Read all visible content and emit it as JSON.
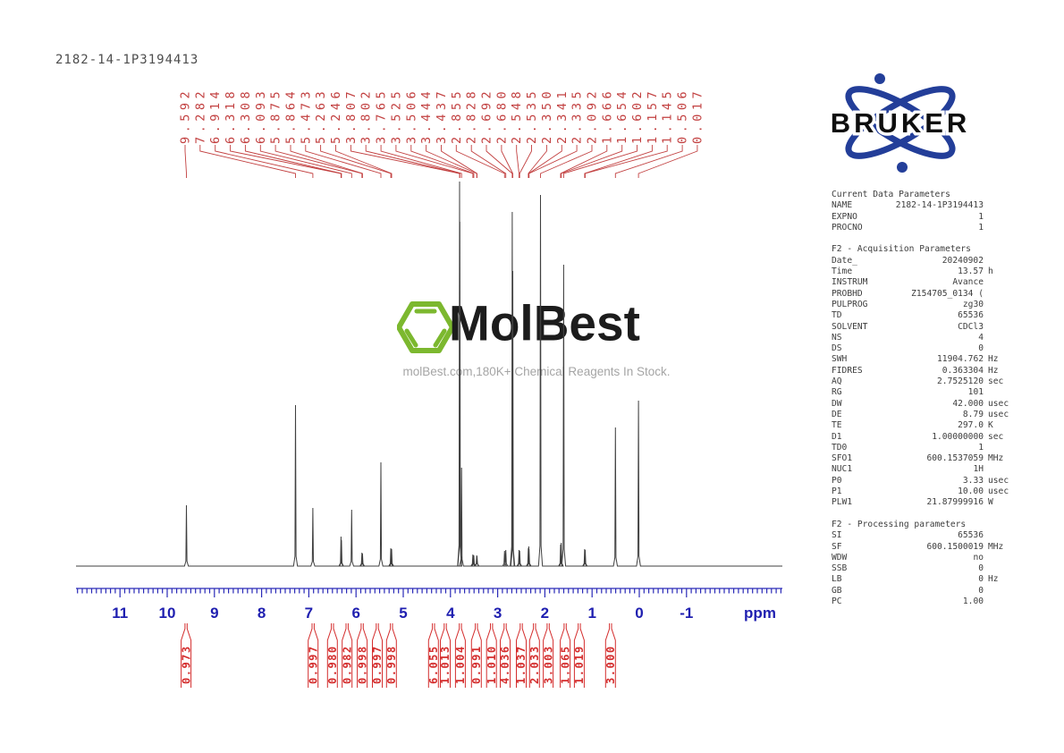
{
  "page": {
    "title": "2182-14-1P3194413"
  },
  "logo": {
    "text": "BRUKER"
  },
  "watermark": {
    "brand": "MolBest",
    "tagline": "molBest.com,180K+ Chemical Reagents In Stock."
  },
  "chart_data": {
    "type": "line",
    "kind": "1H NMR spectrum",
    "title": "2182-14-1P3194413",
    "xlabel": "ppm",
    "x_axis_reversed": true,
    "axis_ticks": [
      11,
      10,
      9,
      8,
      7,
      6,
      5,
      4,
      3,
      2,
      1,
      0,
      -1
    ],
    "axis_range_ppm": [
      11.9,
      -3.0
    ],
    "peak_labels_ppm": [
      9.592,
      7.282,
      6.914,
      6.318,
      6.308,
      6.093,
      5.875,
      5.864,
      5.473,
      5.263,
      5.246,
      3.807,
      3.802,
      3.765,
      3.525,
      3.506,
      3.444,
      3.437,
      2.855,
      2.828,
      2.692,
      2.68,
      2.548,
      2.535,
      2.35,
      2.341,
      2.335,
      2.092,
      1.666,
      1.654,
      1.602,
      1.157,
      1.145,
      0.506,
      0.017
    ],
    "peaks": [
      {
        "ppm": 9.592,
        "intensity": 68
      },
      {
        "ppm": 7.282,
        "intensity": 180
      },
      {
        "ppm": 6.914,
        "intensity": 65
      },
      {
        "ppm": 6.318,
        "intensity": 33
      },
      {
        "ppm": 6.308,
        "intensity": 29
      },
      {
        "ppm": 6.093,
        "intensity": 63
      },
      {
        "ppm": 5.875,
        "intensity": 15
      },
      {
        "ppm": 5.864,
        "intensity": 14
      },
      {
        "ppm": 5.473,
        "intensity": 116
      },
      {
        "ppm": 5.263,
        "intensity": 20
      },
      {
        "ppm": 5.246,
        "intensity": 19
      },
      {
        "ppm": 3.807,
        "intensity": 430
      },
      {
        "ppm": 3.802,
        "intensity": 385
      },
      {
        "ppm": 3.765,
        "intensity": 110
      },
      {
        "ppm": 3.525,
        "intensity": 13
      },
      {
        "ppm": 3.506,
        "intensity": 12
      },
      {
        "ppm": 3.444,
        "intensity": 12
      },
      {
        "ppm": 3.437,
        "intensity": 11
      },
      {
        "ppm": 2.855,
        "intensity": 17
      },
      {
        "ppm": 2.828,
        "intensity": 18
      },
      {
        "ppm": 2.692,
        "intensity": 396
      },
      {
        "ppm": 2.68,
        "intensity": 330
      },
      {
        "ppm": 2.548,
        "intensity": 18
      },
      {
        "ppm": 2.535,
        "intensity": 17
      },
      {
        "ppm": 2.35,
        "intensity": 20
      },
      {
        "ppm": 2.341,
        "intensity": 22
      },
      {
        "ppm": 2.335,
        "intensity": 19
      },
      {
        "ppm": 2.092,
        "intensity": 415
      },
      {
        "ppm": 1.666,
        "intensity": 24
      },
      {
        "ppm": 1.654,
        "intensity": 26
      },
      {
        "ppm": 1.602,
        "intensity": 337
      },
      {
        "ppm": 1.157,
        "intensity": 19
      },
      {
        "ppm": 1.145,
        "intensity": 18
      },
      {
        "ppm": 0.506,
        "intensity": 155
      },
      {
        "ppm": 0.017,
        "intensity": 185
      }
    ],
    "integrals": [
      {
        "value": "0.973",
        "at_ppm": 9.6
      },
      {
        "value": "0.997",
        "at_ppm": 6.91
      },
      {
        "value": "0.980",
        "at_ppm": 6.5
      },
      {
        "value": "0.982",
        "at_ppm": 6.19
      },
      {
        "value": "0.998",
        "at_ppm": 5.87
      },
      {
        "value": "0.997",
        "at_ppm": 5.55
      },
      {
        "value": "0.998",
        "at_ppm": 5.25
      },
      {
        "value": "6.055",
        "at_ppm": 4.36
      },
      {
        "value": "1.013",
        "at_ppm": 4.11
      },
      {
        "value": "1.004",
        "at_ppm": 3.79
      },
      {
        "value": "0.991",
        "at_ppm": 3.45
      },
      {
        "value": "1.010",
        "at_ppm": 3.13
      },
      {
        "value": "4.036",
        "at_ppm": 2.84
      },
      {
        "value": "1.037",
        "at_ppm": 2.5
      },
      {
        "value": "2.033",
        "at_ppm": 2.22
      },
      {
        "value": "3.003",
        "at_ppm": 1.93
      },
      {
        "value": "1.065",
        "at_ppm": 1.57
      },
      {
        "value": "1.019",
        "at_ppm": 1.27
      },
      {
        "value": "3.000",
        "at_ppm": 0.61
      }
    ]
  },
  "parameters": {
    "sections": [
      {
        "header": "Current Data Parameters",
        "rows": [
          [
            "NAME",
            "2182-14-1P3194413",
            ""
          ],
          [
            "EXPNO",
            "1",
            ""
          ],
          [
            "PROCNO",
            "1",
            ""
          ]
        ]
      },
      {
        "header": "F2 - Acquisition Parameters",
        "rows": [
          [
            "Date_",
            "20240902",
            ""
          ],
          [
            "Time",
            "13.57",
            "h"
          ],
          [
            "INSTRUM",
            "Avance",
            ""
          ],
          [
            "PROBHD",
            "Z154705_0134 (",
            ""
          ],
          [
            "PULPROG",
            "zg30",
            ""
          ],
          [
            "TD",
            "65536",
            ""
          ],
          [
            "SOLVENT",
            "CDCl3",
            ""
          ],
          [
            "NS",
            "4",
            ""
          ],
          [
            "DS",
            "0",
            ""
          ],
          [
            "SWH",
            "11904.762",
            "Hz"
          ],
          [
            "FIDRES",
            "0.363304",
            "Hz"
          ],
          [
            "AQ",
            "2.7525120",
            "sec"
          ],
          [
            "RG",
            "101",
            ""
          ],
          [
            "DW",
            "42.000",
            "usec"
          ],
          [
            "DE",
            "8.79",
            "usec"
          ],
          [
            "TE",
            "297.0",
            "K"
          ],
          [
            "D1",
            "1.00000000",
            "sec"
          ],
          [
            "TD0",
            "1",
            ""
          ],
          [
            "SFO1",
            "600.1537059",
            "MHz"
          ],
          [
            "NUC1",
            "1H",
            ""
          ],
          [
            "P0",
            "3.33",
            "usec"
          ],
          [
            "P1",
            "10.00",
            "usec"
          ],
          [
            "PLW1",
            "21.87999916",
            "W"
          ]
        ]
      },
      {
        "header": "F2 - Processing parameters",
        "rows": [
          [
            "SI",
            "65536",
            ""
          ],
          [
            "SF",
            "600.1500019",
            "MHz"
          ],
          [
            "WDW",
            "no",
            ""
          ],
          [
            "SSB",
            "0",
            ""
          ],
          [
            "LB",
            "0",
            "Hz"
          ],
          [
            "GB",
            "0",
            ""
          ],
          [
            "PC",
            "1.00",
            ""
          ]
        ]
      }
    ]
  },
  "colors": {
    "peak_label_red": "#c24040",
    "integral_red": "#d42d2d",
    "axis_blue": "#1f1fb0",
    "bruker_blue": "#233e99",
    "molbest_green": "#7cb82f",
    "trace_gray": "#3f3f3f"
  }
}
